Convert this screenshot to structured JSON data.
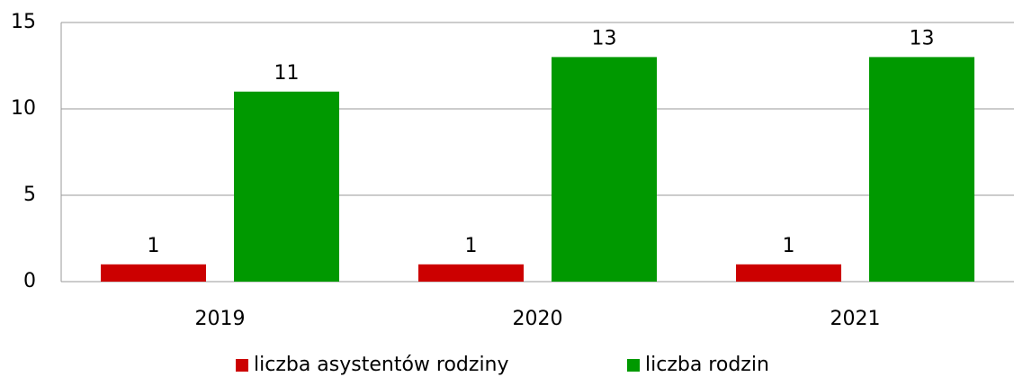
{
  "chart_data": {
    "type": "bar",
    "categories": [
      "2019",
      "2020",
      "2021"
    ],
    "series": [
      {
        "name": "liczba asystentów rodziny",
        "color": "#cc0000",
        "values": [
          1,
          1,
          1
        ]
      },
      {
        "name": "liczba rodzin",
        "color": "#009900",
        "values": [
          11,
          13,
          13
        ]
      }
    ],
    "ylim": [
      0,
      15
    ],
    "yticks": [
      0,
      5,
      10,
      15
    ],
    "grid": true,
    "legend": "bottom"
  }
}
